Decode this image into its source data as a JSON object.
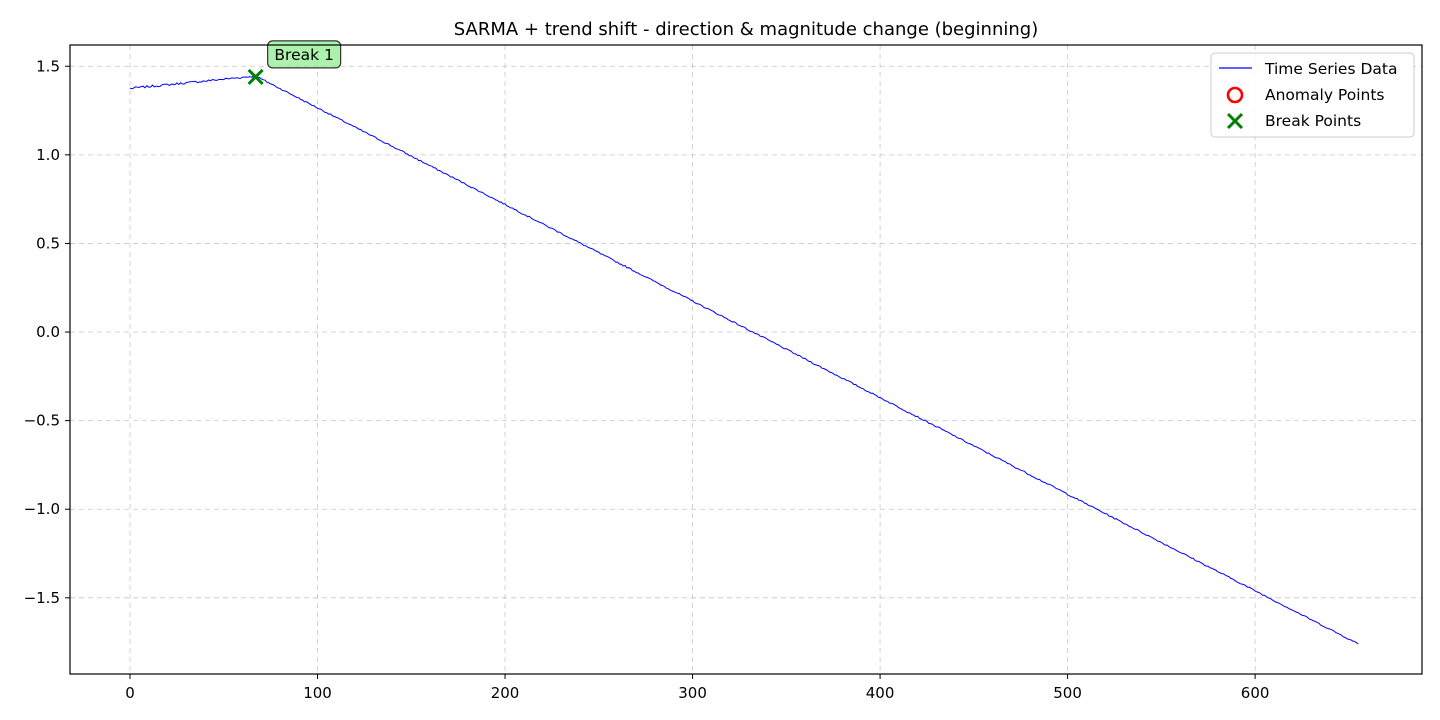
{
  "chart_data": {
    "type": "line",
    "title": "SARMA + trend shift - direction & magnitude change (beginning)",
    "xlabel": "",
    "ylabel": "",
    "xlim": [
      -32,
      689
    ],
    "ylim": [
      -1.93,
      1.62
    ],
    "xticks": [
      0,
      100,
      200,
      300,
      400,
      500,
      600
    ],
    "xtick_labels": [
      "0",
      "100",
      "200",
      "300",
      "400",
      "500",
      "600"
    ],
    "yticks": [
      1.5,
      1.0,
      0.5,
      0.0,
      -0.5,
      -1.0,
      -1.5
    ],
    "ytick_labels": [
      "1.5",
      "1.0",
      "0.5",
      "0.0",
      "−0.5",
      "−1.0",
      "−1.5"
    ],
    "grid": true,
    "legend_position": "top-right",
    "series": [
      {
        "name": "Time Series Data",
        "color": "#0000ff",
        "segments": [
          {
            "x_start": 0,
            "y_start": 1.375,
            "x_end": 67,
            "y_end": 1.445,
            "noise": 0.006
          },
          {
            "x_start": 67,
            "y_start": 1.445,
            "x_end": 655,
            "y_end": -1.76,
            "noise": 0.004
          }
        ]
      }
    ],
    "anomaly_points": {
      "name": "Anomaly Points",
      "color": "#ff0000",
      "x": [],
      "y": []
    },
    "break_points": {
      "name": "Break Points",
      "color": "#008000",
      "x": [
        67
      ],
      "y": [
        1.44
      ]
    },
    "annotations": [
      {
        "text": "Break 1",
        "x": 67,
        "y": 1.44
      }
    ]
  }
}
